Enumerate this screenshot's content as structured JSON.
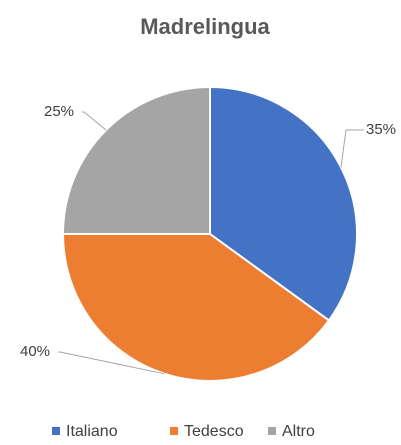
{
  "chart_data": {
    "type": "pie",
    "title": "Madrelingua",
    "categories": [
      "Italiano",
      "Tedesco",
      "Altro"
    ],
    "values": [
      35,
      40,
      25
    ],
    "value_labels": [
      "35%",
      "40%",
      "25%"
    ],
    "colors": [
      "#4472c4",
      "#ed7d31",
      "#a5a5a5"
    ],
    "legend": "bottom"
  }
}
